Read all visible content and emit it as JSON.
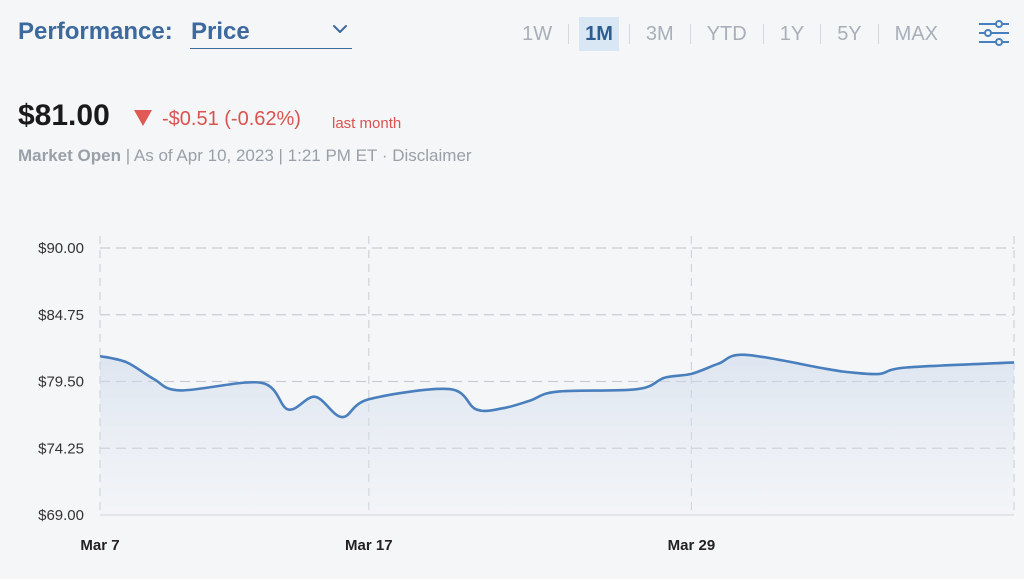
{
  "header": {
    "performance_label": "Performance:",
    "metric_selected": "Price",
    "ranges": [
      {
        "label": "1W",
        "active": false
      },
      {
        "label": "1M",
        "active": true
      },
      {
        "label": "3M",
        "active": false
      },
      {
        "label": "YTD",
        "active": false
      },
      {
        "label": "1Y",
        "active": false
      },
      {
        "label": "5Y",
        "active": false
      },
      {
        "label": "MAX",
        "active": false
      }
    ],
    "settings_icon": "sliders-icon"
  },
  "quote": {
    "price": "$81.00",
    "change": "-$0.51 (-0.62%)",
    "period": "last month",
    "status": "Market Open",
    "as_of": " | As of Apr 10, 2023 | 1:21 PM ET · ",
    "disclaimer": "Disclaimer",
    "down_color": "#d9534f"
  },
  "chart_data": {
    "type": "area",
    "x_tick_labels": [
      "Mar 7",
      "Mar 17",
      "Mar 29"
    ],
    "y_tick_labels": [
      "$90.00",
      "$84.75",
      "$79.50",
      "$74.25",
      "$69.00"
    ],
    "ylim": [
      69.0,
      90.0
    ],
    "grid": true,
    "line_color": "#4a7fbd",
    "series": [
      {
        "x": [
          "2023-03-07",
          "2023-03-08",
          "2023-03-09",
          "2023-03-10",
          "2023-03-13",
          "2023-03-14",
          "2023-03-15",
          "2023-03-16",
          "2023-03-17",
          "2023-03-20",
          "2023-03-21",
          "2023-03-22",
          "2023-03-23",
          "2023-03-24",
          "2023-03-27",
          "2023-03-28",
          "2023-03-29",
          "2023-03-30",
          "2023-03-31",
          "2023-04-03",
          "2023-04-04",
          "2023-04-05",
          "2023-04-06",
          "2023-04-10"
        ],
        "values": [
          81.5,
          81.0,
          79.7,
          78.8,
          79.4,
          77.3,
          78.3,
          76.7,
          78.1,
          78.9,
          77.3,
          77.4,
          78.0,
          78.7,
          78.9,
          79.8,
          80.1,
          80.9,
          81.6,
          80.5,
          80.2,
          80.1,
          80.6,
          81.0
        ]
      }
    ]
  }
}
